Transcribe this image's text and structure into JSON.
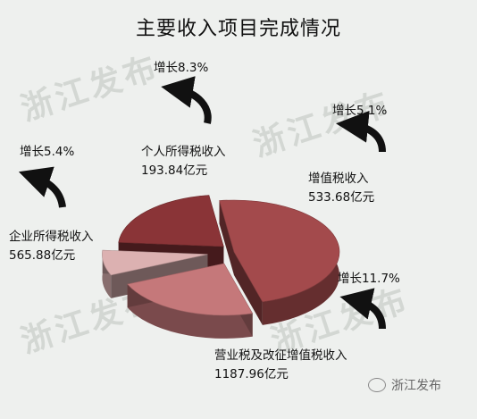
{
  "chart_data": {
    "type": "pie",
    "title": "主要收入项目完成情况",
    "slices": [
      {
        "label": "营业税及改征增值税收入",
        "value": 1187.96,
        "value_text": "1187.96亿元",
        "growth": "增长11.7%",
        "color": "#a34a4c"
      },
      {
        "label": "企业所得税收入",
        "value": 565.88,
        "value_text": "565.88亿元",
        "growth": "增长5.4%",
        "color": "#c5787a"
      },
      {
        "label": "个人所得税收入",
        "value": 193.84,
        "value_text": "193.84亿元",
        "growth": "增长8.3%",
        "color": "#dcb1b1"
      },
      {
        "label": "增值税收入",
        "value": 533.68,
        "value_text": "533.68亿元",
        "growth": "增长5.1%",
        "color": "#8a3437"
      }
    ]
  },
  "watermark_text": "浙江发布",
  "brand_text": "浙江发布"
}
